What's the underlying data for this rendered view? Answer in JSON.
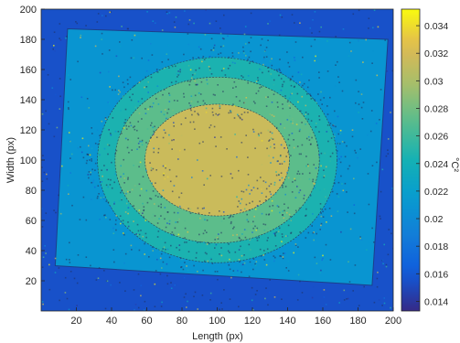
{
  "chart_data": {
    "type": "heatmap",
    "title": "",
    "xlabel": "Length (px)",
    "ylabel": "Width (px)",
    "xlim": [
      0,
      200
    ],
    "ylim": [
      0,
      200
    ],
    "x_ticks": [
      20,
      40,
      60,
      80,
      100,
      120,
      140,
      160,
      180,
      200
    ],
    "y_ticks": [
      20,
      40,
      60,
      80,
      100,
      120,
      140,
      160,
      180,
      200
    ],
    "colorbar": {
      "label": "°C²",
      "range": [
        0.0133,
        0.0352
      ],
      "ticks": [
        0.014,
        0.016,
        0.018,
        0.02,
        0.022,
        0.024,
        0.026,
        0.028,
        0.03,
        0.032,
        0.034
      ],
      "tick_labels": [
        "0.014",
        "0.016",
        "0.018",
        "0.02",
        "0.022",
        "0.024",
        "0.026",
        "0.028",
        "0.03",
        "0.032",
        "0.034"
      ],
      "colormap": "parula"
    },
    "field": {
      "background_level": 0.0155,
      "sample_corners": [
        [
          15,
          187
        ],
        [
          197,
          180
        ],
        [
          188,
          17
        ],
        [
          8,
          30
        ]
      ],
      "plateau_level": 0.021,
      "hotspot_center": [
        100,
        100
      ],
      "hotspot_peak": 0.0315,
      "contour_levels": [
        0.0185,
        0.0245,
        0.029
      ],
      "contour_radii": [
        {
          "rx": 68,
          "ry": 68
        },
        {
          "rx": 58,
          "ry": 55
        },
        {
          "rx": 41,
          "ry": 37
        }
      ]
    }
  }
}
